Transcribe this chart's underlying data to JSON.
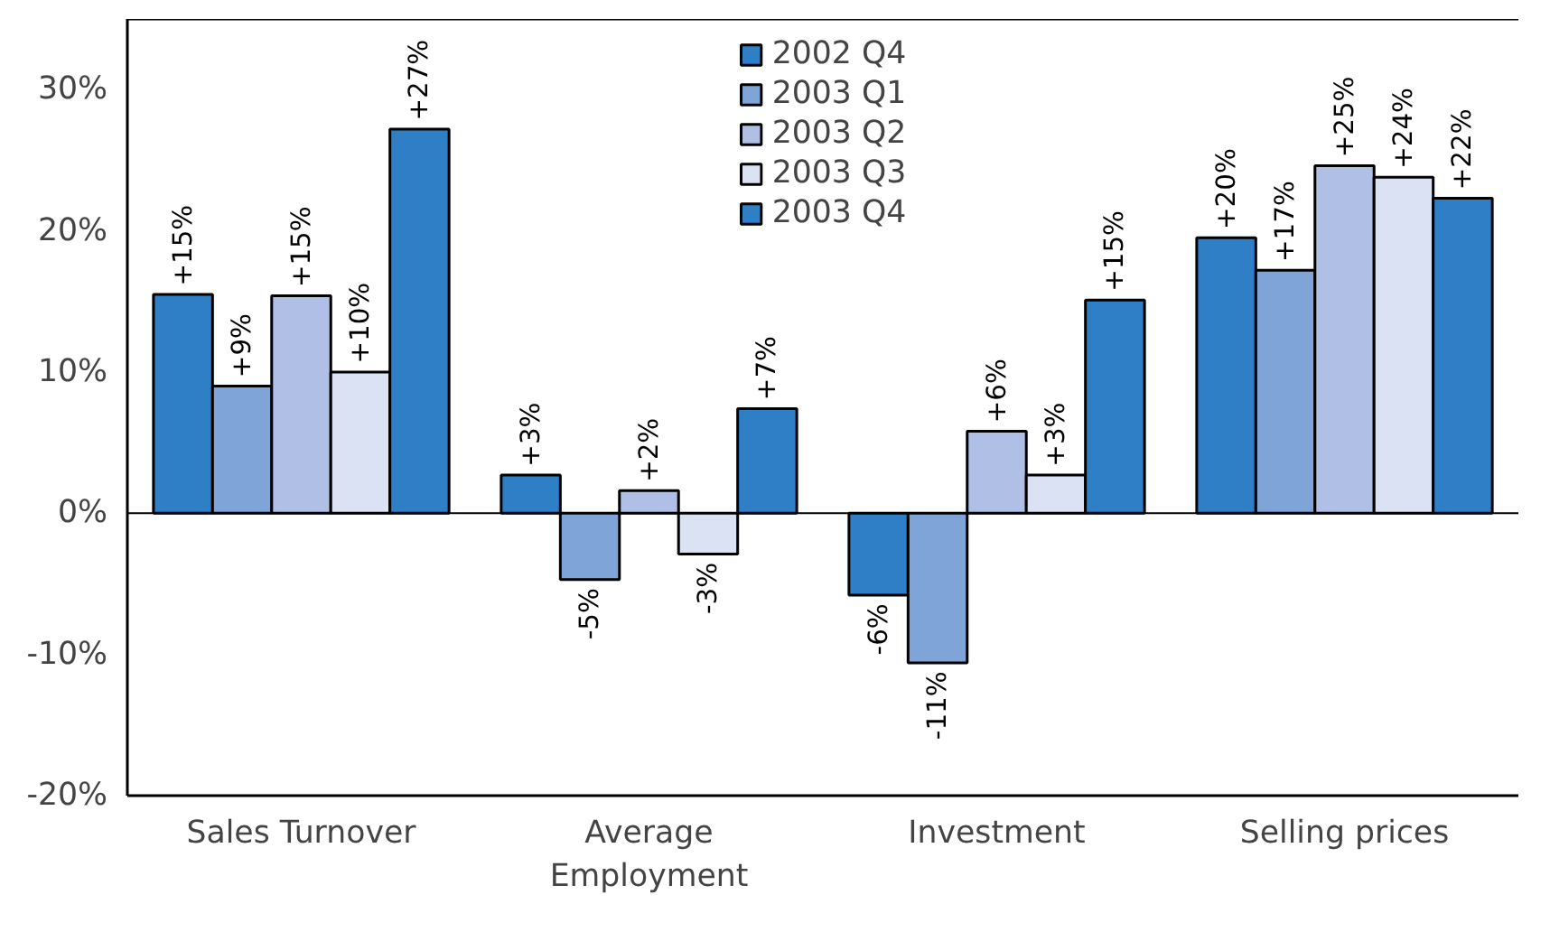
{
  "chart_data": {
    "type": "bar",
    "categories": [
      "Sales Turnover",
      "Average Employment",
      "Investment",
      "Selling prices"
    ],
    "ylim": [
      -20,
      35
    ],
    "yticks": [
      {
        "value": -20,
        "label": "-20%"
      },
      {
        "value": -10,
        "label": "-10%"
      },
      {
        "value": 0,
        "label": "0%"
      },
      {
        "value": 10,
        "label": "10%"
      },
      {
        "value": 20,
        "label": "20%"
      },
      {
        "value": 30,
        "label": "30%"
      }
    ],
    "grid": false,
    "legend": "top",
    "ref_lines": [
      {
        "axis": "y",
        "value": 0
      }
    ],
    "series": [
      {
        "name": "2002 Q4",
        "color": "#2f7fc6",
        "values": [
          15.5,
          2.7,
          -5.8,
          19.5
        ],
        "value_labels": [
          "+15%",
          "+3%",
          "-6%",
          "+20%"
        ]
      },
      {
        "name": "2003 Q1",
        "color": "#7ea4d8",
        "values": [
          9,
          -4.7,
          -10.6,
          17.2
        ],
        "value_labels": [
          "+9%",
          "-5%",
          "-11%",
          "+17%"
        ]
      },
      {
        "name": "2003 Q2",
        "color": "#afbfe6",
        "values": [
          15.4,
          1.6,
          5.8,
          24.6
        ],
        "value_labels": [
          "+15%",
          "+2%",
          "+6%",
          "+25%"
        ]
      },
      {
        "name": "2003 Q3",
        "color": "#dbe2f3",
        "values": [
          10,
          -2.9,
          2.7,
          23.8
        ],
        "value_labels": [
          "+10%",
          "-3%",
          "+3%",
          "+24%"
        ]
      },
      {
        "name": "2003 Q4",
        "color": "#2f7fc6",
        "values": [
          27.2,
          7.4,
          15.1,
          22.3
        ],
        "value_labels": [
          "+27%",
          "+7%",
          "+15%",
          "+22%"
        ]
      }
    ]
  }
}
